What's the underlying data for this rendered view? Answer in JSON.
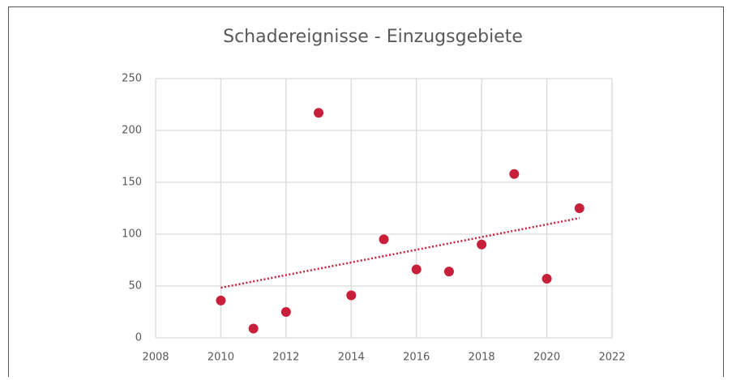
{
  "chart_data": {
    "type": "scatter",
    "title": "Schadereignisse - Einzugsgebiete",
    "series": [
      {
        "color": "#c8203a",
        "x": [
          2010,
          2011,
          2012,
          2013,
          2014,
          2015,
          2016,
          2017,
          2018,
          2019,
          2020,
          2021
        ],
        "values": [
          36,
          9,
          25,
          217,
          41,
          95,
          66,
          64,
          90,
          158,
          57,
          125
        ]
      }
    ],
    "trendline": "linear",
    "xlim": [
      2008,
      2022
    ],
    "xticks": [
      2008,
      2010,
      2012,
      2014,
      2016,
      2018,
      2020,
      2022
    ],
    "ylim": [
      0,
      250
    ],
    "yticks": [
      0,
      50,
      100,
      150,
      200,
      250
    ],
    "grid": true
  }
}
